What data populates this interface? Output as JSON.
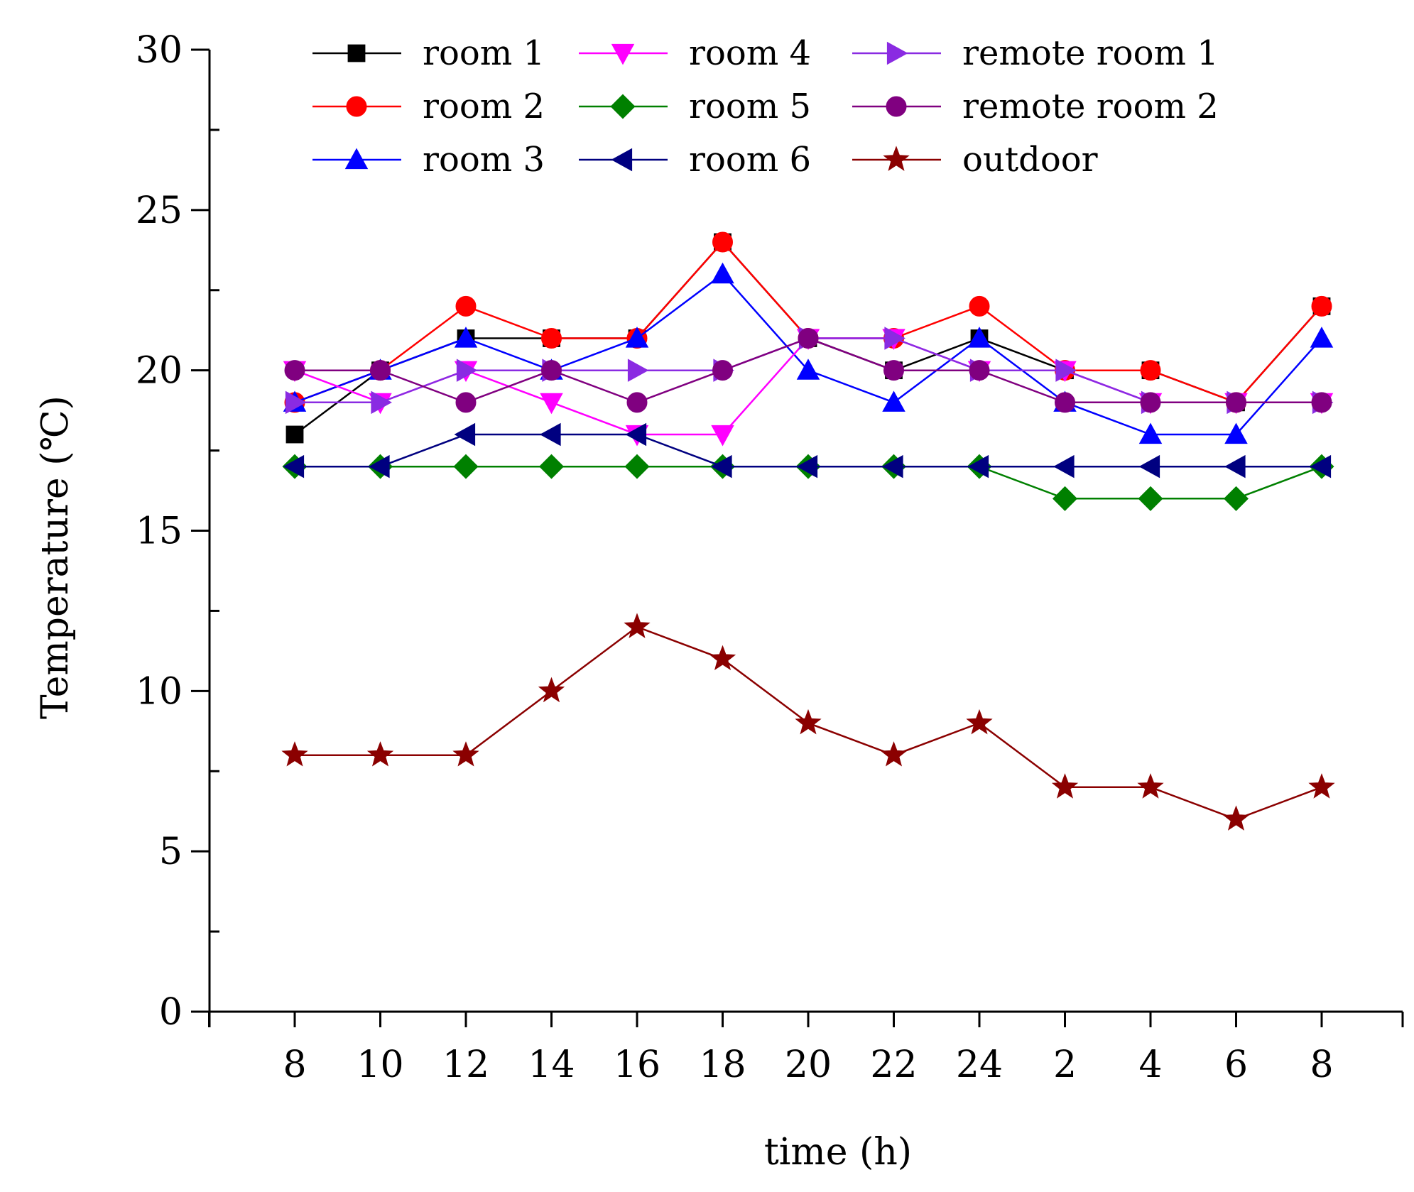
{
  "chart_data": {
    "type": "line",
    "title": "",
    "xlabel": "time (h)",
    "ylabel": "Temperature (℃)",
    "categories": [
      "8",
      "10",
      "12",
      "14",
      "16",
      "18",
      "20",
      "22",
      "24",
      "2",
      "4",
      "6",
      "8"
    ],
    "y_ticks": [
      "0",
      "5",
      "10",
      "15",
      "20",
      "25",
      "30"
    ],
    "ylim": [
      0,
      30
    ],
    "grid": false,
    "legend_position": "top",
    "series": [
      {
        "name": "room 1",
        "color": "#000000",
        "marker": "square",
        "values": [
          18,
          20,
          21,
          21,
          21,
          24,
          21,
          20,
          21,
          20,
          20,
          19,
          22
        ]
      },
      {
        "name": "room 2",
        "color": "#ff0000",
        "marker": "circle",
        "values": [
          19,
          20,
          22,
          21,
          21,
          24,
          21,
          21,
          22,
          20,
          20,
          19,
          22
        ]
      },
      {
        "name": "room 3",
        "color": "#0000ff",
        "marker": "triangle-up",
        "values": [
          19,
          20,
          21,
          20,
          21,
          23,
          20,
          19,
          21,
          19,
          18,
          18,
          21
        ]
      },
      {
        "name": "room 4",
        "color": "#ff00ff",
        "marker": "triangle-down",
        "values": [
          20,
          19,
          20,
          19,
          18,
          18,
          21,
          21,
          20,
          20,
          19,
          19,
          19
        ]
      },
      {
        "name": "room 5",
        "color": "#008000",
        "marker": "diamond",
        "values": [
          17,
          17,
          17,
          17,
          17,
          17,
          17,
          17,
          17,
          16,
          16,
          16,
          17
        ]
      },
      {
        "name": "room 6",
        "color": "#000080",
        "marker": "triangle-left",
        "values": [
          17,
          17,
          18,
          18,
          18,
          17,
          17,
          17,
          17,
          17,
          17,
          17,
          17
        ]
      },
      {
        "name": "remote room 1",
        "color": "#8a2be2",
        "marker": "triangle-right",
        "values": [
          19,
          19,
          20,
          20,
          20,
          20,
          21,
          21,
          20,
          20,
          19,
          19,
          19
        ]
      },
      {
        "name": "remote room 2",
        "color": "#800080",
        "marker": "circle",
        "values": [
          20,
          20,
          19,
          20,
          19,
          20,
          21,
          20,
          20,
          19,
          19,
          19,
          19
        ]
      },
      {
        "name": "outdoor",
        "color": "#8b0000",
        "marker": "star",
        "values": [
          8,
          8,
          8,
          10,
          12,
          11,
          9,
          8,
          9,
          7,
          7,
          6,
          7
        ]
      }
    ]
  }
}
